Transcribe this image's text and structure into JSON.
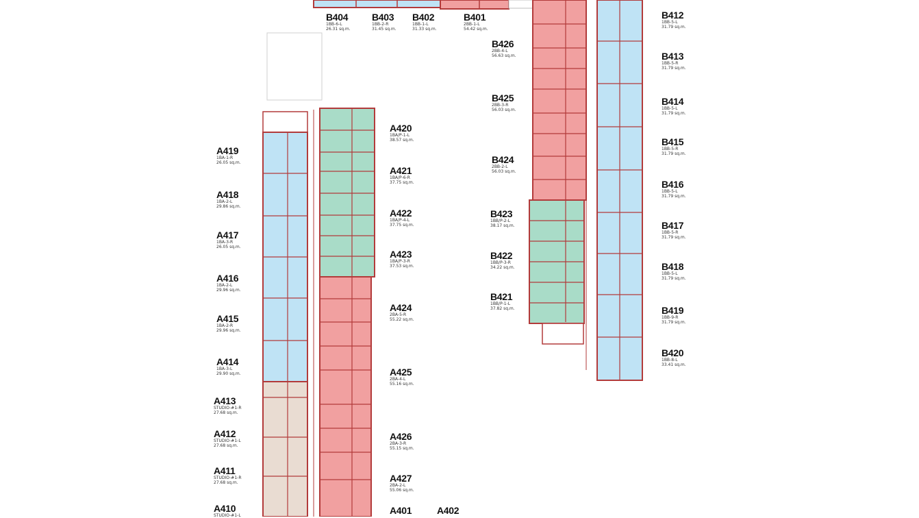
{
  "colors": {
    "one_bedroom": "#bfe3f5",
    "one_bedroom_plus": "#a9dcc8",
    "two_bedroom": "#f1a0a0",
    "studio": "#e9dcd2",
    "walls": "#b23a3a",
    "outline": "#bdbdbd"
  },
  "units": {
    "B404": {
      "code": "B404",
      "type": "1BB-6-L",
      "area": "26.31 sq.m."
    },
    "B403": {
      "code": "B403",
      "type": "1BB-2-R",
      "area": "31.45 sq.m."
    },
    "B402": {
      "code": "B402",
      "type": "1BB-1-L",
      "area": "31.33 sq.m."
    },
    "B401": {
      "code": "B401",
      "type": "2BB-1-L",
      "area": "54.42 sq.m."
    },
    "B426": {
      "code": "B426",
      "type": "2BB-4-L",
      "area": "56.63 sq.m."
    },
    "B425": {
      "code": "B425",
      "type": "2BB-3-R",
      "area": "56.03 sq.m."
    },
    "B424": {
      "code": "B424",
      "type": "2BB-2-L",
      "area": "56.03 sq.m."
    },
    "B423": {
      "code": "B423",
      "type": "1BB/P-2-L",
      "area": "38.17 sq.m."
    },
    "B422": {
      "code": "B422",
      "type": "1BB/P-3-R",
      "area": "34.22 sq.m."
    },
    "B421": {
      "code": "B421",
      "type": "1BB/P-1-L",
      "area": "37.82 sq.m."
    },
    "B412": {
      "code": "B412",
      "type": "1BB-5-L",
      "area": "31.79 sq.m."
    },
    "B413": {
      "code": "B413",
      "type": "1BB-5-R",
      "area": "31.79 sq.m."
    },
    "B414": {
      "code": "B414",
      "type": "1BB-5-L",
      "area": "31.79 sq.m."
    },
    "B415": {
      "code": "B415",
      "type": "1BB-5-R",
      "area": "31.79 sq.m."
    },
    "B416": {
      "code": "B416",
      "type": "1BB-5-L",
      "area": "31.79 sq.m."
    },
    "B417": {
      "code": "B417",
      "type": "1BB-5-R",
      "area": "31.79 sq.m."
    },
    "B418": {
      "code": "B418",
      "type": "1BB-5-L",
      "area": "31.79 sq.m."
    },
    "B419": {
      "code": "B419",
      "type": "1BB-9-R",
      "area": "31.79 sq.m."
    },
    "B420": {
      "code": "B420",
      "type": "1BB-8-L",
      "area": "33.41 sq.m."
    },
    "A420": {
      "code": "A420",
      "type": "1BA/P-1-L",
      "area": "38.57 sq.m."
    },
    "A421": {
      "code": "A421",
      "type": "1BA/P-6-R",
      "area": "37.75 sq.m."
    },
    "A422": {
      "code": "A422",
      "type": "1BA/P-4-L",
      "area": "37.75 sq.m."
    },
    "A423": {
      "code": "A423",
      "type": "1BA/P-3-R",
      "area": "37.53 sq.m."
    },
    "A424": {
      "code": "A424",
      "type": "2BA-5-R",
      "area": "55.22 sq.m."
    },
    "A425": {
      "code": "A425",
      "type": "2BA-4-L",
      "area": "55.16 sq.m."
    },
    "A426": {
      "code": "A426",
      "type": "2BA-3-R",
      "area": "55.15 sq.m."
    },
    "A427": {
      "code": "A427",
      "type": "2BA-2-L",
      "area": "55.06 sq.m."
    },
    "A419": {
      "code": "A419",
      "type": "1BA-1-R",
      "area": "26.05 sq.m."
    },
    "A418": {
      "code": "A418",
      "type": "1BA-2-L",
      "area": "29.86 sq.m."
    },
    "A417": {
      "code": "A417",
      "type": "1BA-3-R",
      "area": "26.05 sq.m."
    },
    "A416": {
      "code": "A416",
      "type": "1BA-2-L",
      "area": "29.96 sq.m."
    },
    "A415": {
      "code": "A415",
      "type": "1BA-2-R",
      "area": "29.96 sq.m."
    },
    "A414": {
      "code": "A414",
      "type": "1BA-3-L",
      "area": "29.90 sq.m."
    },
    "A413": {
      "code": "A413",
      "type": "STUDIO-#1-R",
      "area": "27.68 sq.m."
    },
    "A412": {
      "code": "A412",
      "type": "STUDIO-#1-L",
      "area": "27.68 sq.m."
    },
    "A411": {
      "code": "A411",
      "type": "STUDIO-#1-R",
      "area": "27.68 sq.m."
    },
    "A410": {
      "code": "A410",
      "type": "STUDIO-#1-L",
      "area": ""
    },
    "A401": {
      "code": "A401",
      "type": "",
      "area": ""
    },
    "A402": {
      "code": "A402",
      "type": "",
      "area": ""
    }
  }
}
